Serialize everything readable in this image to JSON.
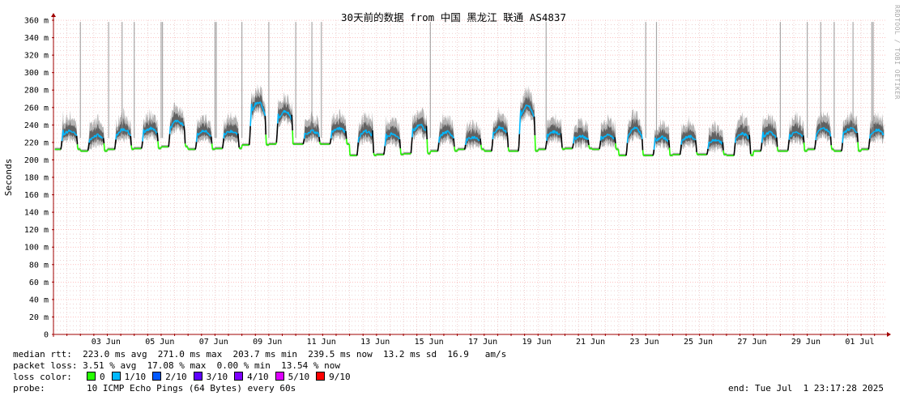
{
  "chart_data": {
    "type": "line",
    "title": "30天前的数据 from 中国 黑龙江 联通 AS4837",
    "ylabel": "Seconds",
    "ylim": [
      0,
      360
    ],
    "y_ticks": [
      {
        "value": 0,
        "label": "0"
      },
      {
        "value": 20,
        "label": "20 m"
      },
      {
        "value": 40,
        "label": "40 m"
      },
      {
        "value": 60,
        "label": "60 m"
      },
      {
        "value": 80,
        "label": "80 m"
      },
      {
        "value": 100,
        "label": "100 m"
      },
      {
        "value": 120,
        "label": "120 m"
      },
      {
        "value": 140,
        "label": "140 m"
      },
      {
        "value": 160,
        "label": "160 m"
      },
      {
        "value": 180,
        "label": "180 m"
      },
      {
        "value": 200,
        "label": "200 m"
      },
      {
        "value": 220,
        "label": "220 m"
      },
      {
        "value": 240,
        "label": "240 m"
      },
      {
        "value": 260,
        "label": "260 m"
      },
      {
        "value": 280,
        "label": "280 m"
      },
      {
        "value": 300,
        "label": "300 m"
      },
      {
        "value": 320,
        "label": "320 m"
      },
      {
        "value": 340,
        "label": "340 m"
      },
      {
        "value": 360,
        "label": "360 m"
      }
    ],
    "x_range_days": [
      0,
      30.9
    ],
    "x_ticks": [
      {
        "day": 1.95,
        "label": "03 Jun"
      },
      {
        "day": 3.95,
        "label": "05 Jun"
      },
      {
        "day": 5.95,
        "label": "07 Jun"
      },
      {
        "day": 7.95,
        "label": "09 Jun"
      },
      {
        "day": 9.95,
        "label": "11 Jun"
      },
      {
        "day": 11.95,
        "label": "13 Jun"
      },
      {
        "day": 13.95,
        "label": "15 Jun"
      },
      {
        "day": 15.95,
        "label": "17 Jun"
      },
      {
        "day": 17.95,
        "label": "19 Jun"
      },
      {
        "day": 19.95,
        "label": "21 Jun"
      },
      {
        "day": 21.95,
        "label": "23 Jun"
      },
      {
        "day": 23.95,
        "label": "25 Jun"
      },
      {
        "day": 25.95,
        "label": "27 Jun"
      },
      {
        "day": 27.95,
        "label": "29 Jun"
      },
      {
        "day": 29.95,
        "label": "01 Jul"
      }
    ],
    "grid": true,
    "daily_baseline_ms": [
      212,
      210,
      212,
      213,
      215,
      212,
      213,
      217,
      218,
      218,
      218,
      205,
      206,
      207,
      210,
      212,
      210,
      210,
      212,
      213,
      212,
      205,
      205,
      206,
      206,
      205,
      210,
      210,
      212,
      210,
      212
    ],
    "daily_peak_ms": [
      233,
      228,
      235,
      236,
      245,
      233,
      233,
      266,
      256,
      233,
      236,
      233,
      230,
      240,
      232,
      226,
      237,
      262,
      232,
      227,
      228,
      236,
      226,
      227,
      223,
      230,
      231,
      232,
      236,
      236,
      234
    ],
    "spike_days": [
      1.0,
      2.05,
      2.55,
      3.0,
      4.0,
      4.05,
      6.0,
      6.05,
      7.0,
      8.0,
      9.0,
      9.6,
      9.95,
      14.0,
      18.3,
      22.0,
      22.4,
      27.0,
      28.0,
      28.5,
      29.0,
      29.7,
      30.4,
      30.45
    ]
  },
  "legend": {
    "median_rtt": "median rtt:  223.0 ms avg  271.0 ms max  203.7 ms min  239.5 ms now  13.2 ms sd  16.9   am/s",
    "packet_loss": "packet loss: 3.51 % avg  17.08 % max  0.00 % min  13.54 % now",
    "loss_color_label": "loss color:",
    "loss_colors": [
      {
        "label": "0",
        "color": "#26ff00"
      },
      {
        "label": "1/10",
        "color": "#00b8ff"
      },
      {
        "label": "2/10",
        "color": "#0059ff"
      },
      {
        "label": "3/10",
        "color": "#5e00ff"
      },
      {
        "label": "4/10",
        "color": "#7e00ff"
      },
      {
        "label": "5/10",
        "color": "#dd00ff"
      },
      {
        "label": "9/10",
        "color": "#ff0000"
      }
    ],
    "probe_label": "probe:",
    "probe": "10 ICMP Echo Pings (64 Bytes) every 60s",
    "end": "end: Tue Jul  1 23:17:28 2025"
  },
  "watermark": "RRDTOOL / TOBI OETIKER",
  "colors": {
    "grid_minor": "#e5b5b5",
    "grid_major": "#ff9a9a",
    "axis": "#a00000",
    "smoke": "#7a7a7a"
  }
}
